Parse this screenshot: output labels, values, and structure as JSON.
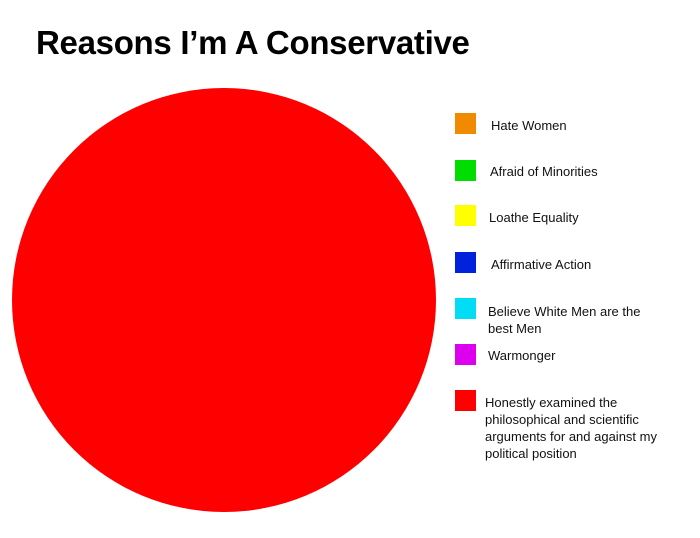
{
  "chart_data": {
    "type": "pie",
    "title": "Reasons I’m A Conservative",
    "categories": [
      "Hate Women",
      "Afraid of Minorities",
      "Loathe Equality",
      "Affirmative Action",
      "Believe White Men are the best Men",
      "Warmonger",
      "Honestly examined the philosophical and scientific arguments for and against my political position"
    ],
    "values": [
      0,
      0,
      0,
      0,
      0,
      0,
      100
    ],
    "colors": [
      "#f28a00",
      "#00dd00",
      "#ffff00",
      "#0022dd",
      "#00ddf5",
      "#dd00ee",
      "#ff0000"
    ],
    "legend_position": "right"
  }
}
